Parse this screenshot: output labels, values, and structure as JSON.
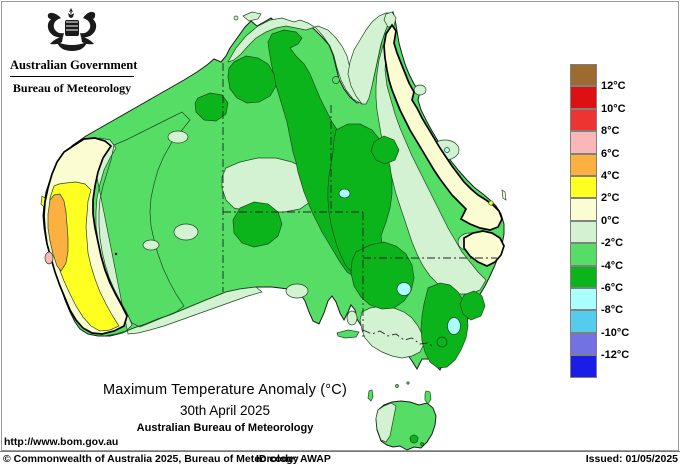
{
  "header": {
    "government": "Australian Government",
    "bureau": "Bureau of Meteorology"
  },
  "title": {
    "line1": "Maximum Temperature Anomaly (°C)",
    "line2": "30th April 2025",
    "line3": "Australian Bureau of Meteorology"
  },
  "url": "http://www.bom.gov.au",
  "footer": {
    "copyright": "© Commonwealth of Australia 2025, Bureau of Meteorology",
    "id_code": "ID code: AWAP",
    "issued": "Issued: 01/05/2025"
  },
  "legend": {
    "boundary_labels": [
      "12°C",
      "10°C",
      "8°C",
      "6°C",
      "4°C",
      "2°C",
      "0°C",
      "-2°C",
      "-4°C",
      "-6°C",
      "-8°C",
      "-10°C",
      "-12°C"
    ],
    "band_colors_top_to_bottom": [
      "#9C6B30",
      "#DD1111",
      "#EE3333",
      "#F9B7B7",
      "#FBB040",
      "#FFFF22",
      "#FCFCD2",
      "#D2F2D2",
      "#55DD66",
      "#0CB41C",
      "#AAFFFF",
      "#55CCEE",
      "#7272E2",
      "#1C1CE8"
    ],
    "band_meaning_top_to_bottom": [
      "> 12",
      "10 to 12",
      "8 to 10",
      "6 to 8",
      "4 to 6",
      "2 to 4",
      "0 to 2",
      "-2 to 0",
      "-4 to -2",
      "-6 to -4",
      "-8 to -6",
      "-10 to -8",
      "-12 to -10",
      "< -12"
    ]
  },
  "palette": {
    "brown": "#9C6B30",
    "dred": "#DD1111",
    "red": "#EE3333",
    "pink": "#F9B7B7",
    "orange": "#FBB040",
    "yellow": "#FFFF22",
    "cream": "#FCFCD2",
    "pgreen": "#D2F2D2",
    "mgreen": "#55DD66",
    "dgreen": "#0CB41C",
    "lcyan": "#AAFFFF",
    "cyan": "#55CCEE",
    "peri": "#7272E2",
    "blue": "#1C1CE8"
  },
  "map_summary": {
    "region": "Australia",
    "dominant_anomaly": "-2 to -6 °C (greens) over most of the continent",
    "warm_anomaly": "0 to +6 °C band along the west and southwest WA coast, small +6 to +8 spot on the central WA coast, 0 to +2 band along the east Queensland coast",
    "coldest_spots": "-6 to -8 °C pockets in inland NSW and on the NT/QLD border",
    "zero_contour": "thick black line separating positive (cream/yellow/orange) and negative (green) anomalies"
  }
}
